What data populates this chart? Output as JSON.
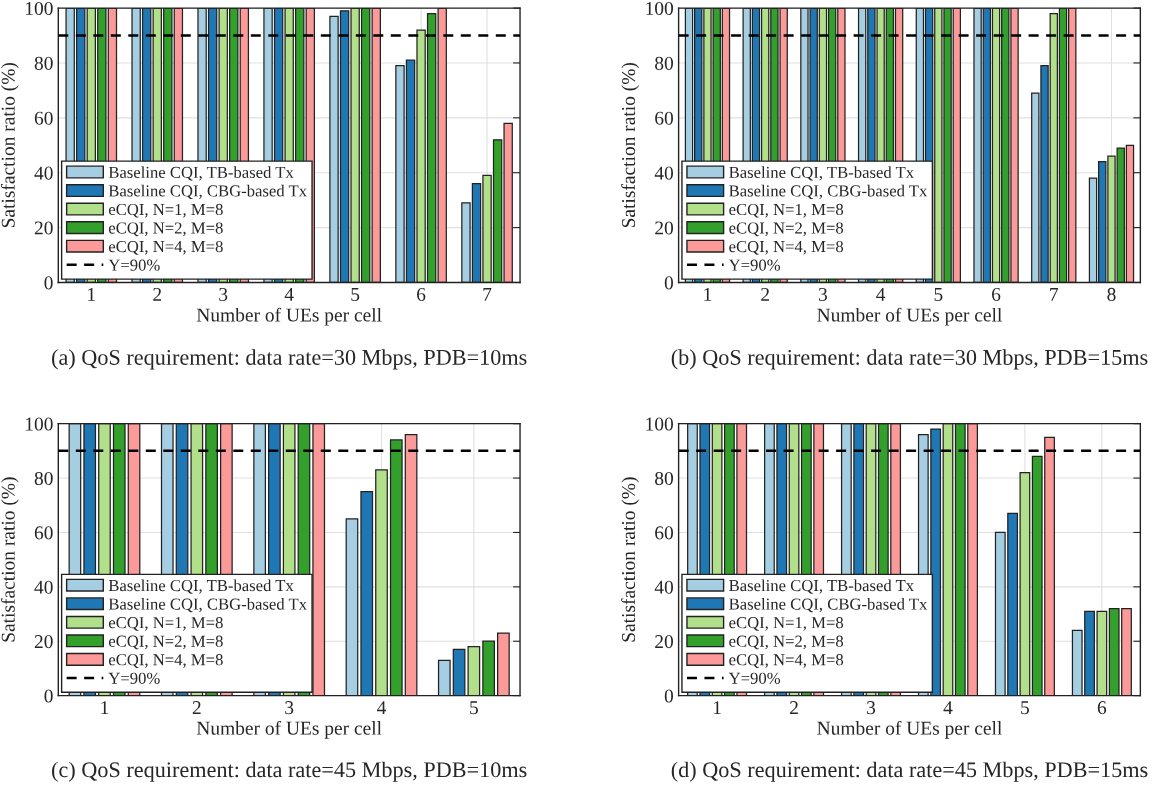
{
  "chart_data": [
    {
      "type": "bar",
      "title": "(a) QoS requirement: data rate=30 Mbps, PDB=10ms",
      "xlabel": "Number of UEs per cell",
      "ylabel": "Satisfaction ratio (%)",
      "categories": [
        "1",
        "2",
        "3",
        "4",
        "5",
        "6",
        "7"
      ],
      "ylim": [
        0,
        100
      ],
      "yticks": [
        0,
        20,
        40,
        60,
        80,
        100
      ],
      "grid": true,
      "legend": "bottom left",
      "series": [
        {
          "name": "Baseline CQI, TB-based Tx",
          "color": "#a6cee3",
          "values": [
            100,
            100,
            100,
            100,
            97,
            79,
            29
          ]
        },
        {
          "name": "Baseline CQI, CBG-based Tx",
          "color": "#1f78b4",
          "values": [
            100,
            100,
            100,
            100,
            99,
            81,
            36
          ]
        },
        {
          "name": "eCQI, N=1, M=8",
          "color": "#b2df8a",
          "values": [
            100,
            100,
            100,
            100,
            100,
            92,
            39
          ]
        },
        {
          "name": "eCQI, N=2, M=8",
          "color": "#33a02c",
          "values": [
            100,
            100,
            100,
            100,
            100,
            98,
            52
          ]
        },
        {
          "name": "eCQI, N=4, M=8",
          "color": "#fb9a99",
          "values": [
            100,
            100,
            100,
            100,
            100,
            100,
            58
          ]
        }
      ],
      "ref_lines": [
        {
          "axis": "y",
          "value": 90,
          "label": "Y=90%",
          "color": "#000000",
          "line_style": "dashed"
        }
      ]
    },
    {
      "type": "bar",
      "title": "(b) QoS requirement: data rate=30 Mbps, PDB=15ms",
      "xlabel": "Number of UEs per cell",
      "ylabel": "Satisfaction ratio (%)",
      "categories": [
        "1",
        "2",
        "3",
        "4",
        "5",
        "6",
        "7",
        "8"
      ],
      "ylim": [
        0,
        100
      ],
      "yticks": [
        0,
        20,
        40,
        60,
        80,
        100
      ],
      "grid": true,
      "legend": "bottom left",
      "series": [
        {
          "name": "Baseline CQI, TB-based Tx",
          "color": "#a6cee3",
          "values": [
            100,
            100,
            100,
            100,
            100,
            100,
            69,
            38
          ]
        },
        {
          "name": "Baseline CQI, CBG-based Tx",
          "color": "#1f78b4",
          "values": [
            100,
            100,
            100,
            100,
            100,
            100,
            79,
            44
          ]
        },
        {
          "name": "eCQI, N=1, M=8",
          "color": "#b2df8a",
          "values": [
            100,
            100,
            100,
            100,
            100,
            100,
            98,
            46
          ]
        },
        {
          "name": "eCQI, N=2, M=8",
          "color": "#33a02c",
          "values": [
            100,
            100,
            100,
            100,
            100,
            100,
            100,
            49
          ]
        },
        {
          "name": "eCQI, N=4, M=8",
          "color": "#fb9a99",
          "values": [
            100,
            100,
            100,
            100,
            100,
            100,
            100,
            50
          ]
        }
      ],
      "ref_lines": [
        {
          "axis": "y",
          "value": 90,
          "label": "Y=90%",
          "color": "#000000",
          "line_style": "dashed"
        }
      ]
    },
    {
      "type": "bar",
      "title": "(c) QoS requirement: data rate=45 Mbps, PDB=10ms",
      "xlabel": "Number of UEs per cell",
      "ylabel": "Satisfaction ratio (%)",
      "categories": [
        "1",
        "2",
        "3",
        "4",
        "5"
      ],
      "ylim": [
        0,
        100
      ],
      "yticks": [
        0,
        20,
        40,
        60,
        80,
        100
      ],
      "grid": true,
      "legend": "bottom left",
      "series": [
        {
          "name": "Baseline CQI, TB-based Tx",
          "color": "#a6cee3",
          "values": [
            100,
            100,
            100,
            65,
            13
          ]
        },
        {
          "name": "Baseline CQI, CBG-based Tx",
          "color": "#1f78b4",
          "values": [
            100,
            100,
            100,
            75,
            17
          ]
        },
        {
          "name": "eCQI, N=1, M=8",
          "color": "#b2df8a",
          "values": [
            100,
            100,
            100,
            83,
            18
          ]
        },
        {
          "name": "eCQI, N=2, M=8",
          "color": "#33a02c",
          "values": [
            100,
            100,
            100,
            94,
            20
          ]
        },
        {
          "name": "eCQI, N=4, M=8",
          "color": "#fb9a99",
          "values": [
            100,
            100,
            100,
            96,
            23
          ]
        }
      ],
      "ref_lines": [
        {
          "axis": "y",
          "value": 90,
          "label": "Y=90%",
          "color": "#000000",
          "line_style": "dashed"
        }
      ]
    },
    {
      "type": "bar",
      "title": "(d) QoS requirement: data rate=45 Mbps, PDB=15ms",
      "xlabel": "Number of UEs per cell",
      "ylabel": "Satisfaction ratio (%)",
      "categories": [
        "1",
        "2",
        "3",
        "4",
        "5",
        "6"
      ],
      "ylim": [
        0,
        100
      ],
      "yticks": [
        0,
        20,
        40,
        60,
        80,
        100
      ],
      "grid": true,
      "legend": "bottom left",
      "series": [
        {
          "name": "Baseline CQI, TB-based Tx",
          "color": "#a6cee3",
          "values": [
            100,
            100,
            100,
            96,
            60,
            24
          ]
        },
        {
          "name": "Baseline CQI, CBG-based Tx",
          "color": "#1f78b4",
          "values": [
            100,
            100,
            100,
            98,
            67,
            31
          ]
        },
        {
          "name": "eCQI, N=1, M=8",
          "color": "#b2df8a",
          "values": [
            100,
            100,
            100,
            100,
            82,
            31
          ]
        },
        {
          "name": "eCQI, N=2, M=8",
          "color": "#33a02c",
          "values": [
            100,
            100,
            100,
            100,
            88,
            32
          ]
        },
        {
          "name": "eCQI, N=4, M=8",
          "color": "#fb9a99",
          "values": [
            100,
            100,
            100,
            100,
            95,
            32
          ]
        }
      ],
      "ref_lines": [
        {
          "axis": "y",
          "value": 90,
          "label": "Y=90%",
          "color": "#000000",
          "line_style": "dashed"
        }
      ]
    }
  ]
}
